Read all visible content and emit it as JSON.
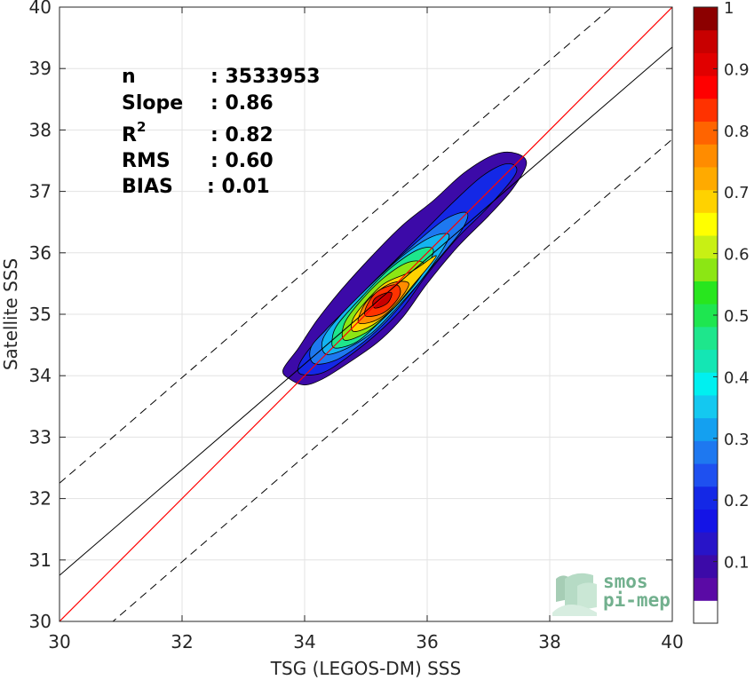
{
  "chart_data": {
    "type": "scatter-density-contour",
    "xlabel": "TSG (LEGOS-DM) SSS",
    "ylabel": "Satellite SSS",
    "xlim": [
      30,
      40
    ],
    "ylim": [
      30,
      40
    ],
    "x_ticks": [
      "30",
      "32",
      "34",
      "36",
      "38",
      "40"
    ],
    "y_ticks": [
      "30",
      "31",
      "32",
      "33",
      "34",
      "35",
      "36",
      "37",
      "38",
      "39",
      "40"
    ],
    "grid": true,
    "stats": [
      {
        "key": "n",
        "value": ": 3533953"
      },
      {
        "key": "Slope",
        "value": ": 0.86"
      },
      {
        "key": "R",
        "sup": "2",
        "value": ": 0.82"
      },
      {
        "key": "RMS",
        "value": ": 0.60"
      },
      {
        "key": "BIAS",
        "value": ": 0.01"
      }
    ],
    "reference_lines": {
      "one_to_one": {
        "slope": 1,
        "intercept": 0,
        "color": "#ff0000"
      },
      "fit": {
        "x": [
          30,
          40
        ],
        "y": [
          30.75,
          39.35
        ],
        "color": "#000000"
      },
      "fit_band": {
        "offset": 1.5,
        "style": "dashed",
        "color": "#000000"
      }
    },
    "density_contours": [
      {
        "level": 0.05,
        "color": "#3c0aa8",
        "points": [
          [
            33.75,
            33.95
          ],
          [
            34.0,
            33.85
          ],
          [
            34.3,
            33.95
          ],
          [
            34.7,
            34.2
          ],
          [
            35.2,
            34.55
          ],
          [
            35.6,
            34.95
          ],
          [
            36.0,
            35.5
          ],
          [
            36.5,
            36.1
          ],
          [
            37.0,
            36.6
          ],
          [
            37.4,
            37.05
          ],
          [
            37.62,
            37.45
          ],
          [
            37.45,
            37.62
          ],
          [
            37.1,
            37.6
          ],
          [
            36.6,
            37.3
          ],
          [
            36.1,
            36.85
          ],
          [
            35.6,
            36.45
          ],
          [
            35.1,
            35.95
          ],
          [
            34.6,
            35.4
          ],
          [
            34.2,
            34.9
          ],
          [
            33.9,
            34.45
          ],
          [
            33.65,
            34.1
          ]
        ]
      },
      {
        "level": 0.15,
        "color": "#1428e6",
        "points": [
          [
            33.95,
            34.02
          ],
          [
            34.3,
            34.05
          ],
          [
            34.7,
            34.3
          ],
          [
            35.2,
            34.7
          ],
          [
            35.6,
            35.1
          ],
          [
            36.0,
            35.65
          ],
          [
            36.5,
            36.25
          ],
          [
            37.0,
            36.75
          ],
          [
            37.45,
            37.3
          ],
          [
            37.3,
            37.45
          ],
          [
            36.9,
            37.25
          ],
          [
            36.4,
            36.8
          ],
          [
            35.9,
            36.3
          ],
          [
            35.4,
            35.8
          ],
          [
            34.9,
            35.3
          ],
          [
            34.4,
            34.8
          ],
          [
            34.05,
            34.4
          ],
          [
            33.9,
            34.15
          ]
        ]
      },
      {
        "level": 0.25,
        "color": "#1e78f0",
        "points": [
          [
            34.15,
            34.2
          ],
          [
            34.5,
            34.25
          ],
          [
            34.9,
            34.5
          ],
          [
            35.3,
            34.85
          ],
          [
            35.7,
            35.3
          ],
          [
            36.1,
            35.8
          ],
          [
            36.55,
            36.35
          ],
          [
            36.65,
            36.65
          ],
          [
            36.3,
            36.55
          ],
          [
            35.8,
            36.15
          ],
          [
            35.3,
            35.7
          ],
          [
            34.8,
            35.2
          ],
          [
            34.35,
            34.75
          ],
          [
            34.1,
            34.45
          ]
        ]
      },
      {
        "level": 0.35,
        "color": "#14b4f0",
        "points": [
          [
            34.35,
            34.35
          ],
          [
            34.7,
            34.45
          ],
          [
            35.1,
            34.7
          ],
          [
            35.5,
            35.1
          ],
          [
            35.9,
            35.55
          ],
          [
            36.25,
            36.05
          ],
          [
            36.35,
            36.3
          ],
          [
            36.05,
            36.25
          ],
          [
            35.6,
            35.95
          ],
          [
            35.1,
            35.5
          ],
          [
            34.6,
            35.0
          ],
          [
            34.3,
            34.6
          ]
        ]
      },
      {
        "level": 0.45,
        "color": "#1ee68c",
        "points": [
          [
            34.5,
            34.45
          ],
          [
            34.85,
            34.55
          ],
          [
            35.2,
            34.85
          ],
          [
            35.6,
            35.25
          ],
          [
            35.95,
            35.7
          ],
          [
            36.1,
            36.05
          ],
          [
            35.85,
            36.05
          ],
          [
            35.4,
            35.75
          ],
          [
            34.95,
            35.3
          ],
          [
            34.55,
            34.85
          ],
          [
            34.45,
            34.6
          ]
        ]
      },
      {
        "level": 0.55,
        "color": "#8ce614",
        "points": [
          [
            34.65,
            34.58
          ],
          [
            35.0,
            34.7
          ],
          [
            35.35,
            35.0
          ],
          [
            35.7,
            35.4
          ],
          [
            35.95,
            35.8
          ],
          [
            35.7,
            35.85
          ],
          [
            35.3,
            35.6
          ],
          [
            34.9,
            35.2
          ],
          [
            34.65,
            34.85
          ]
        ]
      },
      {
        "level": 0.65,
        "color": "#ffd200",
        "points": [
          [
            34.8,
            34.72
          ],
          [
            35.1,
            34.82
          ],
          [
            35.45,
            35.1
          ],
          [
            35.75,
            35.45
          ],
          [
            36.15,
            35.95
          ],
          [
            35.75,
            35.7
          ],
          [
            35.3,
            35.5
          ],
          [
            34.95,
            35.15
          ],
          [
            34.78,
            34.9
          ]
        ]
      },
      {
        "level": 0.75,
        "color": "#ff8c00",
        "points": [
          [
            34.9,
            34.85
          ],
          [
            35.2,
            34.92
          ],
          [
            35.5,
            35.18
          ],
          [
            35.7,
            35.5
          ],
          [
            35.4,
            35.5
          ],
          [
            35.05,
            35.25
          ],
          [
            34.9,
            35.0
          ]
        ]
      },
      {
        "level": 0.85,
        "color": "#ff3200",
        "points": [
          [
            35.0,
            34.97
          ],
          [
            35.3,
            35.03
          ],
          [
            35.55,
            35.3
          ],
          [
            35.5,
            35.48
          ],
          [
            35.2,
            35.38
          ],
          [
            35.02,
            35.15
          ]
        ]
      },
      {
        "level": 0.95,
        "color": "#c80000",
        "points": [
          [
            35.15,
            35.1
          ],
          [
            35.35,
            35.18
          ],
          [
            35.42,
            35.35
          ],
          [
            35.25,
            35.32
          ],
          [
            35.12,
            35.22
          ]
        ]
      }
    ],
    "colorbar": {
      "range": [
        0,
        1
      ],
      "ticks": [
        "0.1",
        "0.2",
        "0.3",
        "0.4",
        "0.5",
        "0.6",
        "0.7",
        "0.8",
        "0.9",
        "1"
      ],
      "colors": [
        "#ffffff",
        "#5a0aa5",
        "#3c0aa8",
        "#2814c8",
        "#1414e6",
        "#1428e6",
        "#1e50f0",
        "#1e78f0",
        "#14a0f0",
        "#14c8f0",
        "#00f0f0",
        "#14e6b4",
        "#1ee68c",
        "#1ee650",
        "#28e61e",
        "#8ce614",
        "#c8f014",
        "#ffff00",
        "#ffd200",
        "#ffaa00",
        "#ff8c00",
        "#ff6400",
        "#ff3200",
        "#ff0000",
        "#e10000",
        "#c80000",
        "#8c0000"
      ]
    },
    "logo": {
      "line1": "smos",
      "line2": "pi-mep",
      "color": "#72b08e"
    }
  }
}
